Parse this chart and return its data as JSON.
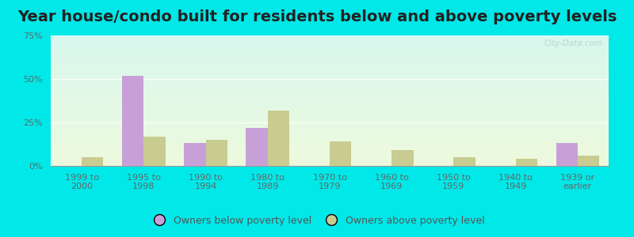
{
  "title": "Year house/condo built for residents below and above poverty levels",
  "categories": [
    "1999 to\n2000",
    "1995 to\n1998",
    "1990 to\n1994",
    "1980 to\n1989",
    "1970 to\n1979",
    "1960 to\n1969",
    "1950 to\n1959",
    "1940 to\n1949",
    "1939 or\nearlier"
  ],
  "below_poverty": [
    0.0,
    52.0,
    13.0,
    22.0,
    0.0,
    0.0,
    0.0,
    0.0,
    13.0
  ],
  "above_poverty": [
    5.0,
    17.0,
    15.0,
    32.0,
    14.0,
    9.0,
    5.0,
    4.0,
    6.0
  ],
  "below_color": "#c8a0d8",
  "above_color": "#c8cc90",
  "ylim": [
    0,
    75
  ],
  "yticks": [
    0,
    25,
    50,
    75
  ],
  "ytick_labels": [
    "0%",
    "25%",
    "50%",
    "75%"
  ],
  "outer_bg": "#00e8e8",
  "legend_below_label": "Owners below poverty level",
  "legend_above_label": "Owners above poverty level",
  "bar_width": 0.35,
  "title_fontsize": 14,
  "tick_fontsize": 8,
  "legend_fontsize": 9
}
